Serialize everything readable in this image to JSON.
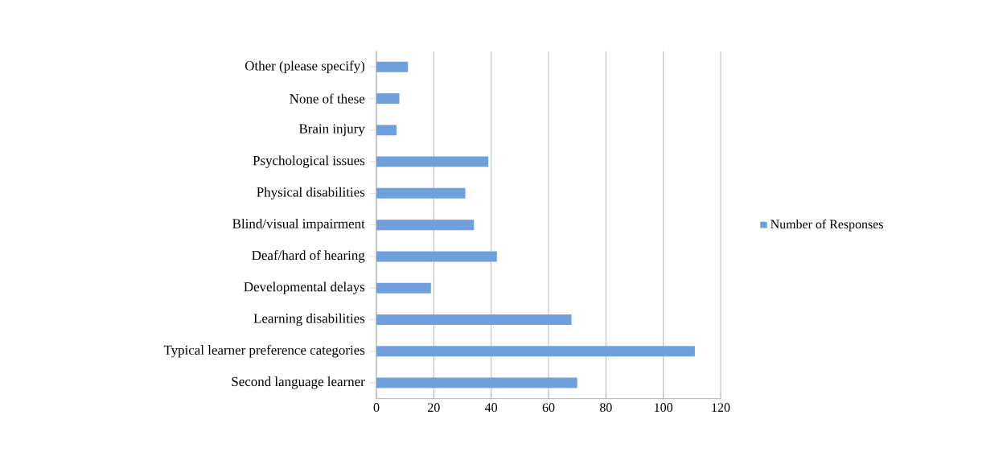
{
  "chart_data": {
    "type": "bar",
    "orientation": "horizontal",
    "categories": [
      "Other (please specify)",
      "None of these",
      "Brain injury",
      "Psychological issues",
      "Physical disabilities",
      "Blind/visual impairment",
      "Deaf/hard of hearing",
      "Developmental delays",
      "Learning disabilities",
      "Typical learner preference categories",
      "Second language learner"
    ],
    "series": [
      {
        "name": "Number of Responses",
        "color": "#6fa0dc",
        "values": [
          11,
          8,
          7,
          39,
          31,
          34,
          42,
          19,
          68,
          111,
          70
        ]
      }
    ],
    "xlim": [
      0,
      120
    ],
    "xticks": [
      0,
      20,
      40,
      60,
      80,
      100,
      120
    ],
    "grid": "x",
    "legend": "right"
  }
}
